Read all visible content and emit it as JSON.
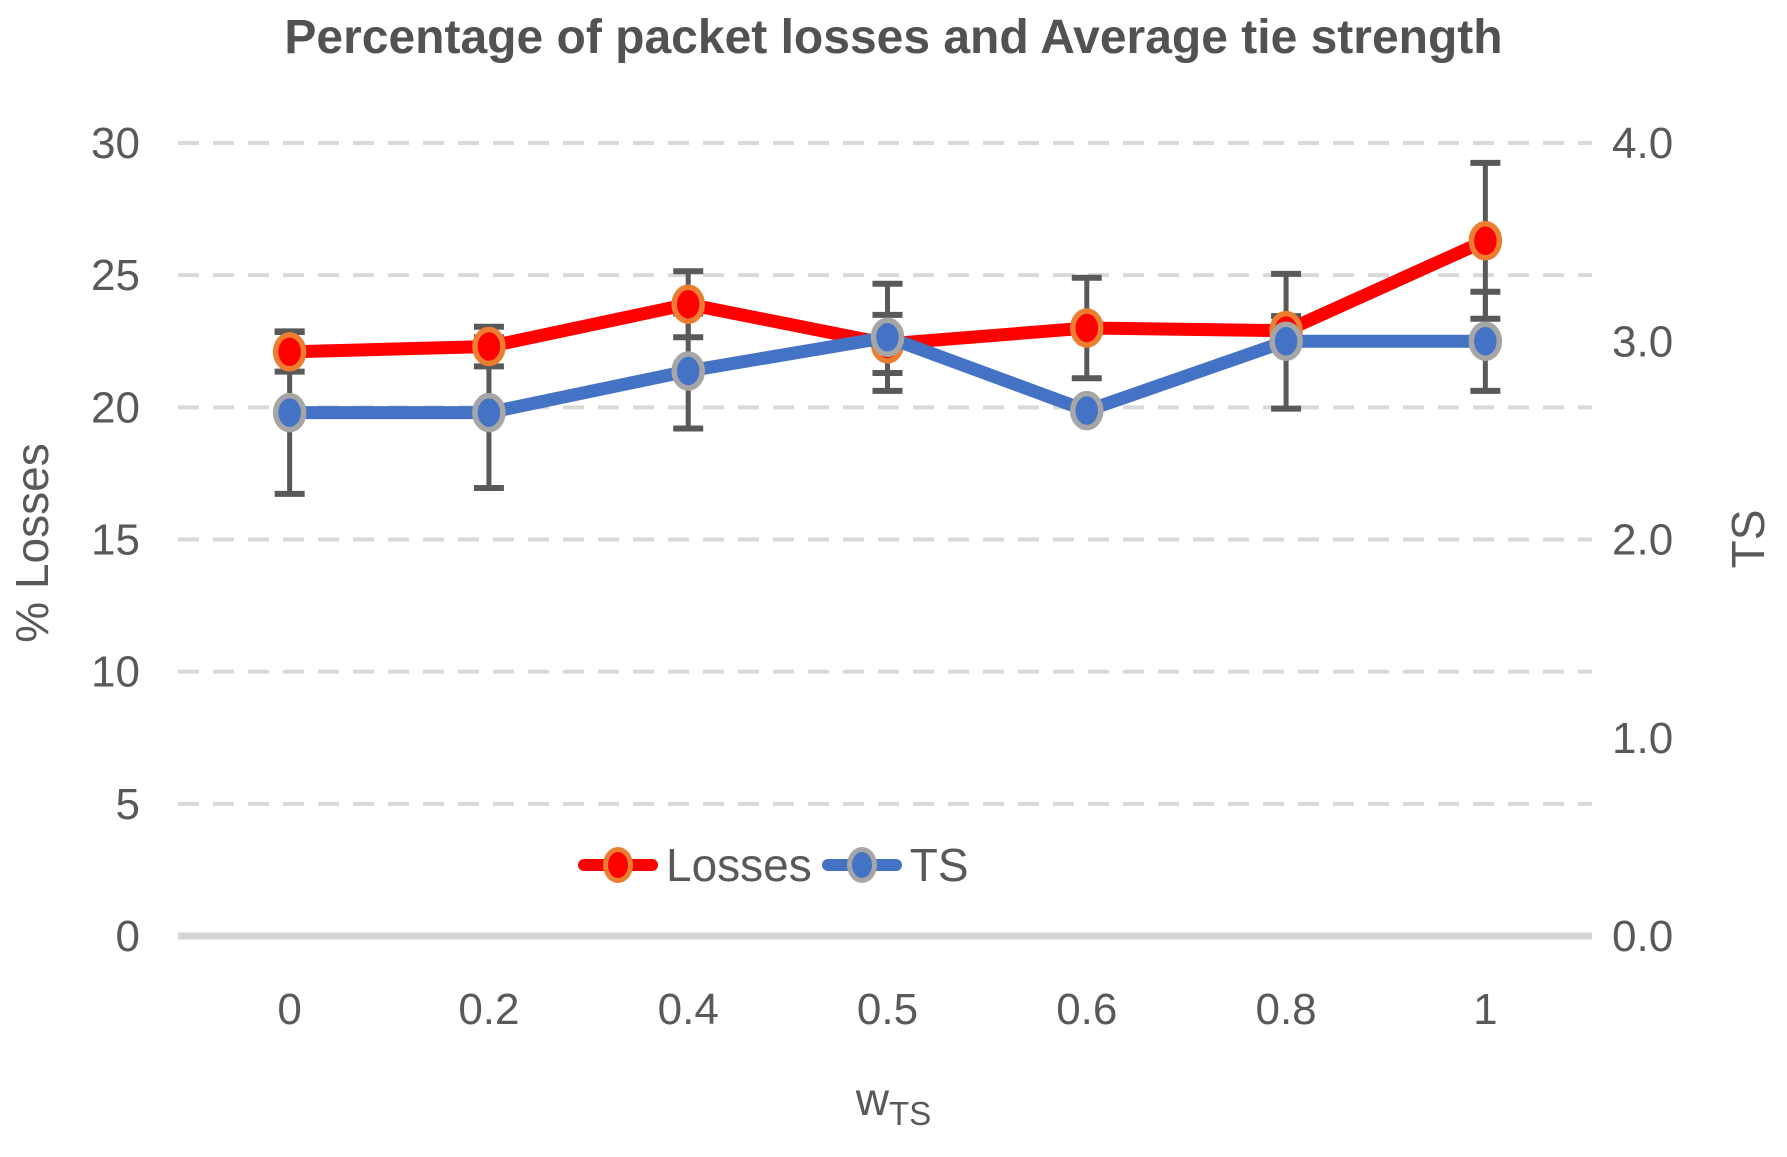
{
  "chart_data": {
    "type": "line",
    "title": "Percentage of packet losses and Average tie strength",
    "categories": [
      "0",
      "0.2",
      "0.4",
      "0.5",
      "0.6",
      "0.8",
      "1"
    ],
    "x_axis": {
      "label_main": "w",
      "label_sub": "TS"
    },
    "left_axis": {
      "title": "% Losses",
      "max": 30,
      "ticks": [
        {
          "label": "30",
          "v": 30
        },
        {
          "label": "25",
          "v": 25
        },
        {
          "label": "20",
          "v": 20
        },
        {
          "label": "15",
          "v": 15
        },
        {
          "label": "10",
          "v": 10
        },
        {
          "label": "5",
          "v": 5
        },
        {
          "label": "0",
          "v": 0
        }
      ]
    },
    "right_axis": {
      "title": "TS",
      "max": 4,
      "ticks": [
        {
          "label": "4.0",
          "v": 4
        },
        {
          "label": "3.0",
          "v": 3
        },
        {
          "label": "2.0",
          "v": 2
        },
        {
          "label": "1.0",
          "v": 1
        },
        {
          "label": "0.0",
          "v": 0
        }
      ]
    },
    "series": [
      {
        "name": "Losses",
        "axis": "left",
        "color": "#ff0000",
        "marker_ring": "#ed7d31",
        "values": [
          22.1,
          22.3,
          23.9,
          22.4,
          23.0,
          22.9,
          26.3
        ],
        "errors": [
          0.75,
          0.75,
          1.25,
          1.1,
          1.9,
          0.55,
          2.95
        ]
      },
      {
        "name": "TS",
        "axis": "right",
        "color": "#4472c4",
        "marker_ring": "#a6a6a6",
        "values": [
          2.64,
          2.64,
          2.85,
          3.02,
          2.65,
          3.0,
          3.0
        ],
        "errors": [
          0.41,
          0.38,
          0.29,
          0.27,
          null,
          0.34,
          0.25
        ]
      }
    ],
    "styles": {
      "grid_color": "#d9d9d9",
      "axis_line_color": "#d6d6d6",
      "error_bar_color": "#595959",
      "text_color": "#595959",
      "title_color": "#525252"
    },
    "legend_position": "bottom"
  }
}
